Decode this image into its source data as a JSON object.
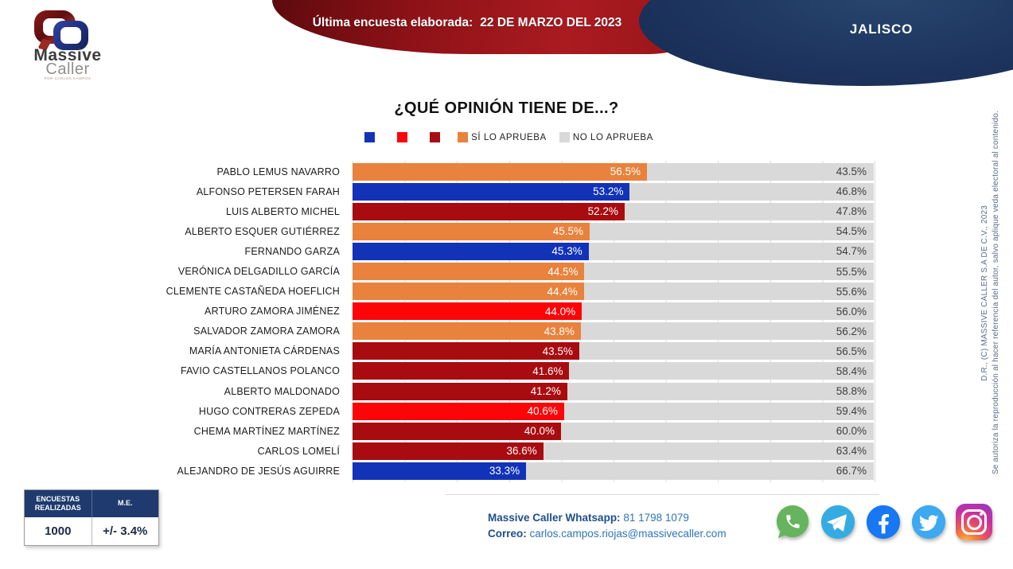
{
  "header": {
    "banner_label": "Última encuesta elaborada:",
    "banner_date": "22 DE MARZO DEL 2023",
    "region": "JALISCO",
    "logo": {
      "line1": "Massive",
      "line2": "Caller",
      "tagline": "POR CARLOS CAMPOS"
    }
  },
  "chart_data": {
    "type": "bar",
    "orientation": "horizontal-stacked",
    "title": "¿QUÉ OPINIÓN TIENE DE...?",
    "xlim": [
      0,
      100
    ],
    "gridline_interval_pct": 10,
    "legend": [
      {
        "label": "",
        "color": "#1233B8"
      },
      {
        "label": "",
        "color": "#FB0508"
      },
      {
        "label": "",
        "color": "#A80C10"
      },
      {
        "label": "SÍ LO APRUEBA",
        "color": "#E8823C"
      },
      {
        "label": "NO LO APRUEBA",
        "color": "#D9D9D9"
      }
    ],
    "no_color": "#D9D9D9",
    "rows": [
      {
        "name": "PABLO LEMUS NAVARRO",
        "approve": 56.5,
        "disapprove": 43.5,
        "color": "#E8823C"
      },
      {
        "name": "ALFONSO PETERSEN FARAH",
        "approve": 53.2,
        "disapprove": 46.8,
        "color": "#1233B8"
      },
      {
        "name": "LUIS ALBERTO MICHEL",
        "approve": 52.2,
        "disapprove": 47.8,
        "color": "#A80C10"
      },
      {
        "name": "ALBERTO ESQUER GUTIÉRREZ",
        "approve": 45.5,
        "disapprove": 54.5,
        "color": "#E8823C"
      },
      {
        "name": "FERNANDO GARZA",
        "approve": 45.3,
        "disapprove": 54.7,
        "color": "#1233B8"
      },
      {
        "name": "VERÓNICA DELGADILLO GARCÍA",
        "approve": 44.5,
        "disapprove": 55.5,
        "color": "#E8823C"
      },
      {
        "name": "CLEMENTE CASTAÑEDA HOEFLICH",
        "approve": 44.4,
        "disapprove": 55.6,
        "color": "#E8823C"
      },
      {
        "name": "ARTURO ZAMORA JIMÉNEZ",
        "approve": 44.0,
        "disapprove": 56.0,
        "color": "#FB0508"
      },
      {
        "name": "SALVADOR ZAMORA ZAMORA",
        "approve": 43.8,
        "disapprove": 56.2,
        "color": "#E8823C"
      },
      {
        "name": "MARÍA ANTONIETA CÁRDENAS",
        "approve": 43.5,
        "disapprove": 56.5,
        "color": "#A80C10"
      },
      {
        "name": "FAVIO CASTELLANOS POLANCO",
        "approve": 41.6,
        "disapprove": 58.4,
        "color": "#A80C10"
      },
      {
        "name": "ALBERTO MALDONADO",
        "approve": 41.2,
        "disapprove": 58.8,
        "color": "#A80C10"
      },
      {
        "name": "HUGO CONTRERAS ZEPEDA",
        "approve": 40.6,
        "disapprove": 59.4,
        "color": "#FB0508"
      },
      {
        "name": "CHEMA MARTÍNEZ MARTÍNEZ",
        "approve": 40.0,
        "disapprove": 60.0,
        "color": "#A80C10"
      },
      {
        "name": "CARLOS LOMELÍ",
        "approve": 36.6,
        "disapprove": 63.4,
        "color": "#A80C10"
      },
      {
        "name": "ALEJANDRO DE JESÚS AGUIRRE",
        "approve": 33.3,
        "disapprove": 66.7,
        "color": "#1233B8"
      }
    ]
  },
  "rights": {
    "line1": "D.R., (C) MASSIVE CALLER S.A DE C.V., 2023",
    "line2": "Se autoriza la reproducción al hacer referencia del autor, salvo aplique veda electoral al contenido."
  },
  "footer": {
    "stats_table": {
      "headers": [
        "ENCUESTAS REALIZADAS",
        "M.E."
      ],
      "values": [
        "1000",
        "+/- 3.4%"
      ]
    },
    "whatsapp_label": "Massive Caller Whatsapp:",
    "whatsapp_number": "81 1798 1079",
    "email_label": "Correo:",
    "email": "carlos.campos.riojas@massivecaller.com",
    "social_icons": [
      "whatsapp-icon",
      "telegram-icon",
      "facebook-icon",
      "twitter-icon",
      "instagram-icon"
    ]
  }
}
